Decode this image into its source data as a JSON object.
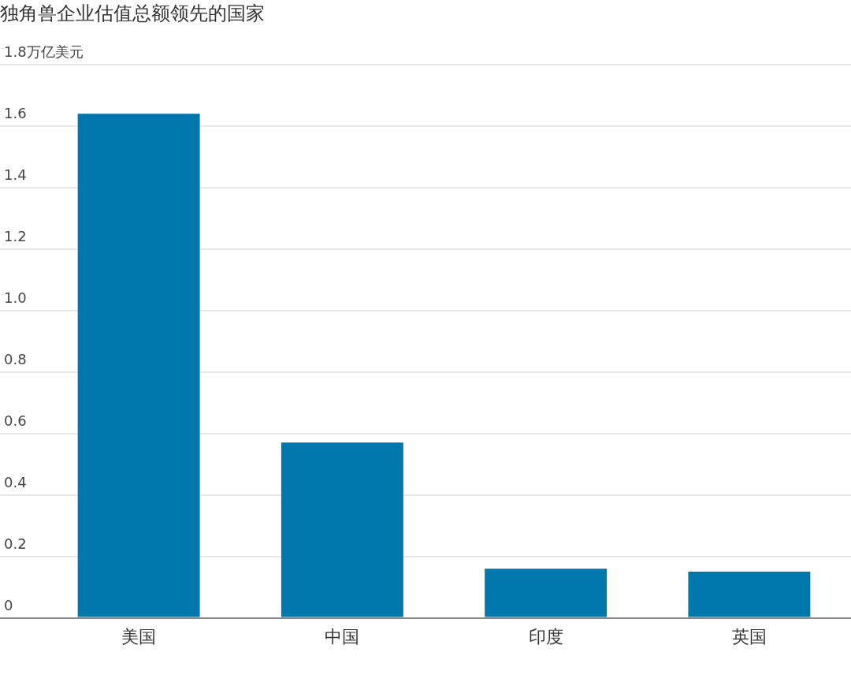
{
  "chart_data": {
    "type": "bar",
    "title": "独角兽企业估值总额领先的国家",
    "categories": [
      "美国",
      "中国",
      "印度",
      "英国"
    ],
    "values": [
      1.64,
      0.57,
      0.16,
      0.15
    ],
    "color": "#0077ad",
    "ylim": [
      0,
      1.8
    ],
    "yticks": [
      0,
      0.2,
      0.4,
      0.6,
      0.8,
      {
        "value": 1.0,
        "label": "1.0"
      },
      1.2,
      1.4,
      1.6,
      {
        "value": 1.8,
        "label": "1.8万亿美元"
      }
    ],
    "grid": "y"
  }
}
